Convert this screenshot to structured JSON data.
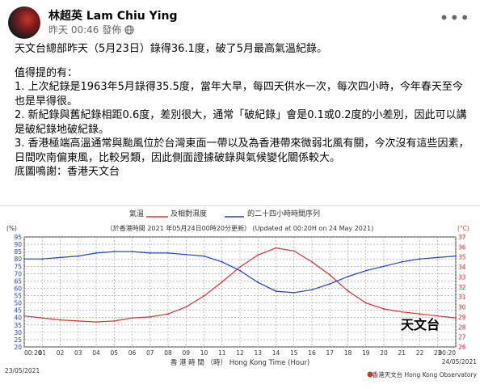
{
  "post": {
    "author": "林超英 Lam Chiu Ying",
    "timestamp": "昨天 00:46",
    "post_label": "發佈",
    "paragraphs": [
      "天文台總部昨天（5月23日）錄得36.1度，破了5月最高氣溫紀錄。",
      "值得提的有：",
      "1. 上次紀錄是1963年5月錄得35.5度，當年大旱，每四天供水一次，每次四小時，今年春天至今也是旱得很。",
      "2. 新紀錄與舊紀錄相距0.6度，差別很大，通常「破紀錄」會是0.1或0.2度的小差別，因此可以講是破紀錄地破紀錄。",
      "3. 香港極端高溫通常與颱風位於台灣東面一帶以及為香港帶來微弱北風有關，今次沒有這些因素，日間吹南偏東風，比較另類，因此側面證據破錄與氣候變化關係較大。",
      "底圖鳴謝：香港天文台"
    ]
  },
  "chart_data": {
    "type": "line",
    "title_parts": [
      "氣溫",
      "及相對濕度",
      "的二十四小時時間序列"
    ],
    "subtitle": "（於香港時間 2021 年05月24日00時20分更新）  (Updated at 00:20H on 24 May 2021)",
    "xlabel": "香 港 時 間 （時）   Hong Kong Time (Hour)",
    "left_unit": "(%)",
    "right_unit": "(°C)",
    "x_ticks": [
      "00:20",
      "01",
      "02",
      "03",
      "04",
      "05",
      "06",
      "07",
      "08",
      "09",
      "10",
      "11",
      "12",
      "13",
      "14",
      "15",
      "16",
      "17",
      "18",
      "19",
      "20",
      "21",
      "22",
      "23",
      "00:20"
    ],
    "left_ticks": [
      "95",
      "90",
      "85",
      "80",
      "75",
      "70",
      "65",
      "60",
      "55",
      "50",
      "45",
      "40",
      "35",
      "30",
      "25",
      "20"
    ],
    "right_ticks": [
      "37",
      "36",
      "35",
      "34",
      "33",
      "32",
      "31",
      "30",
      "29",
      "28",
      "27",
      "26"
    ],
    "ylim_left": [
      20,
      95
    ],
    "ylim_right": [
      26,
      37
    ],
    "date_left": "23/05/2021",
    "date_right": "24/05/2021",
    "watermark": "天文台",
    "credit": "香港天文台 Hong Kong Observatory",
    "series": [
      {
        "name": "Temperature (°C)",
        "color": "#e03030",
        "x": [
          0,
          1,
          2,
          3,
          4,
          5,
          6,
          7,
          8,
          9,
          10,
          11,
          12,
          13,
          14,
          15,
          16,
          17,
          18,
          19,
          20,
          21,
          22,
          23,
          24
        ],
        "values": [
          29.1,
          28.9,
          28.7,
          28.6,
          28.5,
          28.6,
          28.9,
          29.0,
          29.3,
          30.0,
          31.1,
          32.5,
          34.0,
          35.2,
          35.9,
          35.6,
          34.5,
          33.2,
          31.6,
          30.4,
          29.8,
          29.5,
          29.3,
          29.1,
          28.9
        ]
      },
      {
        "name": "Relative Humidity (%)",
        "color": "#2040d0",
        "x": [
          0,
          1,
          2,
          3,
          4,
          5,
          6,
          7,
          8,
          9,
          10,
          11,
          12,
          13,
          14,
          15,
          16,
          17,
          18,
          19,
          20,
          21,
          22,
          23,
          24
        ],
        "values": [
          80,
          80,
          81,
          82,
          84,
          85,
          85,
          84,
          84,
          83,
          82,
          78,
          72,
          64,
          58,
          57,
          59,
          63,
          68,
          72,
          75,
          78,
          80,
          81,
          82
        ]
      }
    ]
  }
}
